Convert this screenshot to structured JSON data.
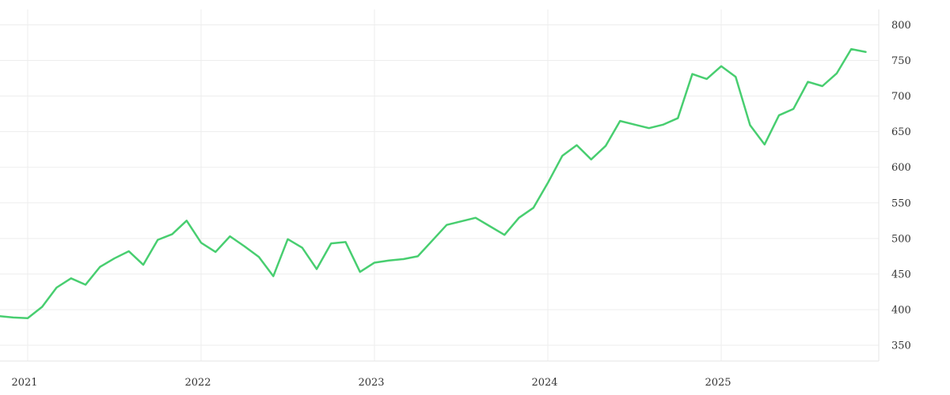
{
  "chart_data": {
    "type": "line",
    "title": "",
    "xlabel": "",
    "ylabel": "",
    "legend": "none",
    "grid": "on",
    "x_ticks": [
      "2021",
      "2022",
      "2023",
      "2024",
      "2025"
    ],
    "y_ticks": [
      800,
      750,
      700,
      650,
      600,
      550,
      500,
      450,
      400,
      350
    ],
    "ylim": [
      350,
      800
    ],
    "series": [
      {
        "name": "value",
        "dates": [
          "2020-11",
          "2020-12",
          "2021-01",
          "2021-02",
          "2021-03",
          "2021-04",
          "2021-05",
          "2021-06",
          "2021-07",
          "2021-08",
          "2021-09",
          "2021-10",
          "2021-11",
          "2021-12",
          "2022-01",
          "2022-02",
          "2022-03",
          "2022-04",
          "2022-05",
          "2022-06",
          "2022-07",
          "2022-08",
          "2022-09",
          "2022-10",
          "2022-11",
          "2022-12",
          "2023-01",
          "2023-02",
          "2023-03",
          "2023-04",
          "2023-05",
          "2023-06",
          "2023-07",
          "2023-08",
          "2023-09",
          "2023-10",
          "2023-11",
          "2023-12",
          "2024-01",
          "2024-02",
          "2024-03",
          "2024-04",
          "2024-05",
          "2024-06",
          "2024-07",
          "2024-08",
          "2024-09",
          "2024-10",
          "2024-11",
          "2024-12",
          "2025-01",
          "2025-02",
          "2025-03",
          "2025-04",
          "2025-05",
          "2025-06",
          "2025-07",
          "2025-08",
          "2025-09",
          "2025-10",
          "2025-11"
        ],
        "values": [
          391,
          389,
          388,
          404,
          431,
          444,
          435,
          460,
          472,
          482,
          463,
          498,
          506,
          525,
          494,
          481,
          503,
          489,
          474,
          447,
          499,
          487,
          457,
          493,
          495,
          453,
          466,
          469,
          471,
          475,
          497,
          519,
          524,
          529,
          517,
          505,
          529,
          543,
          578,
          616,
          631,
          611,
          630,
          665,
          660,
          655,
          660,
          669,
          731,
          724,
          742,
          727,
          659,
          632,
          673,
          682,
          720,
          714,
          732,
          766,
          762
        ]
      }
    ],
    "colors": {
      "line": "#48ce70",
      "grid": "#ededed",
      "border": "#e6e6e6",
      "tick_text": "#333333",
      "background": "#ffffff"
    }
  }
}
